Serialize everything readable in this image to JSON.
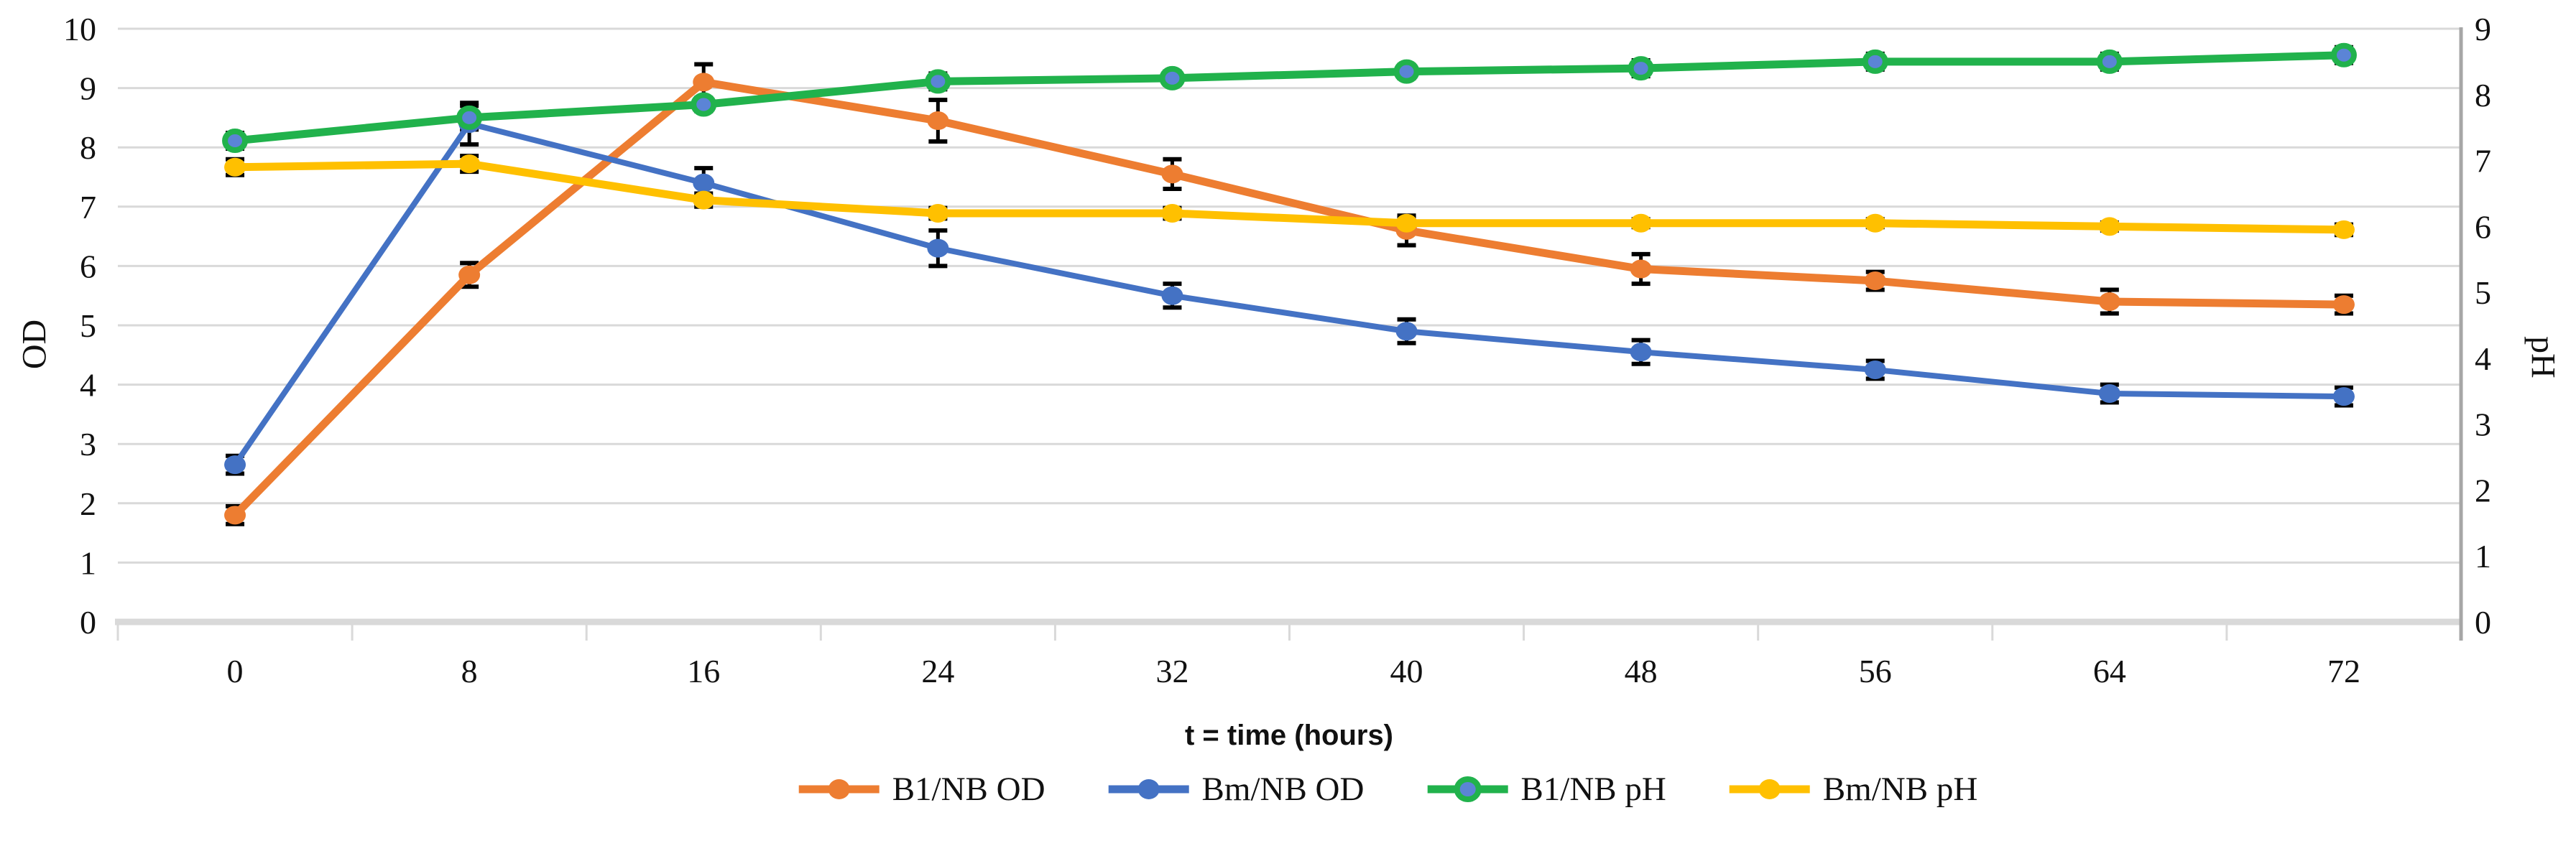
{
  "figure_title": "",
  "axis_titles": {
    "left": "OD",
    "right": "pH",
    "x": "t = time (hours)"
  },
  "chart_data": {
    "type": "line",
    "x": [
      0,
      8,
      16,
      24,
      32,
      40,
      48,
      56,
      64,
      72
    ],
    "x_tick_labels": [
      "0",
      "8",
      "16",
      "24",
      "32",
      "40",
      "48",
      "56",
      "64",
      "72"
    ],
    "xlabel": "t = time (hours)",
    "left_axis": {
      "label": "OD",
      "min": 0,
      "max": 10,
      "tick_step": 1,
      "tick_labels": [
        "0",
        "1",
        "2",
        "3",
        "4",
        "5",
        "6",
        "7",
        "8",
        "9",
        "10"
      ]
    },
    "right_axis": {
      "label": "pH",
      "min": 0,
      "max": 9,
      "tick_step": 1,
      "tick_labels": [
        "0",
        "1",
        "2",
        "3",
        "4",
        "5",
        "6",
        "7",
        "8",
        "9"
      ]
    },
    "grid": "horizontal",
    "error_bars": true,
    "legend_position": "bottom",
    "series": [
      {
        "name": "B1/NB OD",
        "axis": "left",
        "color": "#ED7D31",
        "marker_fill": "#ED7D31",
        "marker_stroke": "#ED7D31",
        "values": [
          1.8,
          5.85,
          9.1,
          8.45,
          7.55,
          6.6,
          5.95,
          5.75,
          5.4,
          5.35
        ],
        "errors": [
          0.15,
          0.2,
          0.3,
          0.35,
          0.25,
          0.25,
          0.25,
          0.15,
          0.2,
          0.15
        ]
      },
      {
        "name": "Bm/NB OD",
        "axis": "left",
        "color": "#4472C4",
        "marker_fill": "#4472C4",
        "marker_stroke": "#4472C4",
        "values": [
          2.65,
          8.4,
          7.4,
          6.3,
          5.5,
          4.9,
          4.55,
          4.25,
          3.85,
          3.8
        ],
        "errors": [
          0.15,
          0.35,
          0.25,
          0.3,
          0.2,
          0.2,
          0.2,
          0.15,
          0.15,
          0.15
        ]
      },
      {
        "name": "B1/NB pH",
        "axis": "right",
        "color": "#21B24C",
        "marker_fill": "#5B84D6",
        "marker_stroke": "#21B24C",
        "values": [
          7.3,
          7.65,
          7.85,
          8.2,
          8.25,
          8.35,
          8.4,
          8.5,
          8.5,
          8.6
        ],
        "errors": [
          0.12,
          0.18,
          0.1,
          0.12,
          0.1,
          0.1,
          0.12,
          0.12,
          0.12,
          0.12
        ]
      },
      {
        "name": "Bm/NB pH",
        "axis": "right",
        "color": "#FFC000",
        "marker_fill": "#FFC000",
        "marker_stroke": "#FFC000",
        "values": [
          6.9,
          6.95,
          6.4,
          6.2,
          6.2,
          6.05,
          6.05,
          6.05,
          6.0,
          5.95
        ],
        "errors": [
          0.12,
          0.12,
          0.1,
          0.08,
          0.08,
          0.08,
          0.06,
          0.06,
          0.06,
          0.08
        ]
      }
    ]
  },
  "colors": {
    "gridline": "#D9D9D9",
    "bottom_axis_line": "#D9D9D9",
    "right_axis_line": "#A6A6A6",
    "tick_mark": "#D9D9D9",
    "error_bar": "#000000",
    "text": "#111111",
    "background": "#FFFFFF"
  }
}
